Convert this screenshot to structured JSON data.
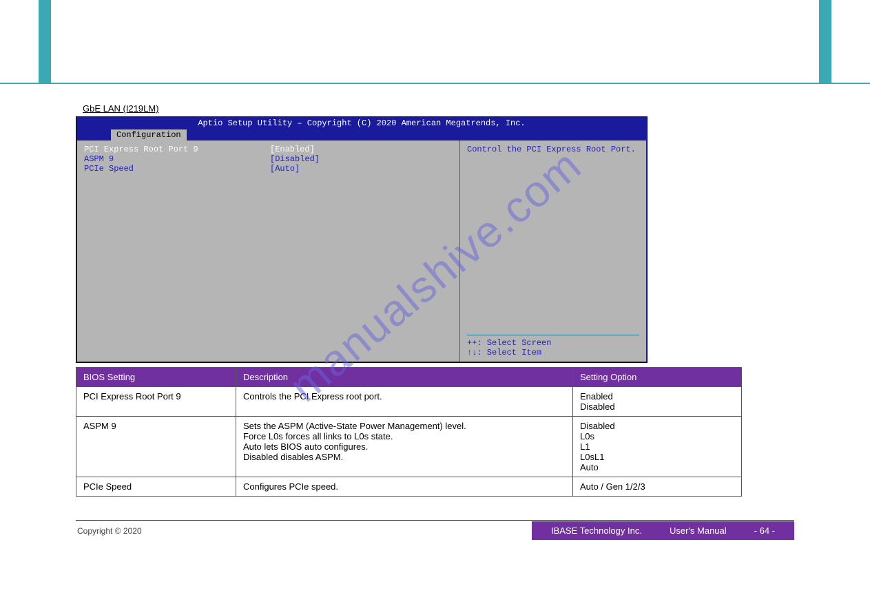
{
  "section_title": "GbE LAN (I219LM)",
  "watermark_text": "manualshive.com",
  "bios": {
    "title": "Aptio Setup Utility – Copyright (C) 2020 American Megatrends, Inc.",
    "tab": "Configuration",
    "rows": [
      {
        "label": "PCI Express Root Port 9",
        "value": "[Enabled]",
        "label_color": "#ffffff",
        "value_color": "#ffffff"
      },
      {
        "label": "ASPM 9",
        "value": "[Disabled]",
        "label_color": "#2020c4",
        "value_color": "#2020c4"
      },
      {
        "label": "PCIe Speed",
        "value": "[Auto]",
        "label_color": "#2020c4",
        "value_color": "#2020c4"
      }
    ],
    "help": "Control the PCI Express Root Port.",
    "hints": [
      "++: Select Screen",
      "↑↓: Select Item"
    ],
    "colors": {
      "header_bg": "#1a1a9c",
      "body_bg": "#b5b5b5",
      "tab_bg": "#b5b5b5",
      "text_blue": "#2020c4",
      "text_white": "#ffffff",
      "divider": "#18708a"
    }
  },
  "table": {
    "headers": [
      "BIOS Setting",
      "Description",
      "Setting Option"
    ],
    "rows": [
      [
        "PCI Express Root Port 9",
        "Controls the PCI Express root port.",
        "Enabled\nDisabled"
      ],
      [
        "ASPM 9",
        "Sets the ASPM (Active-State Power Management) level.\nForce L0s forces all links to L0s state.\nAuto lets BIOS auto configures.\nDisabled disables ASPM.",
        "Disabled\nL0s\nL1\nL0sL1\nAuto"
      ],
      [
        "PCIe Speed",
        "Configures PCIe speed.",
        "Auto / Gen 1/2/3"
      ]
    ],
    "header_bg": "#7030a0",
    "header_color": "#ffffff"
  },
  "footer": {
    "line1": "IBASE Technology Inc.",
    "line2": "User's Manual",
    "copyright": "Copyright © 2020",
    "page": "- 64 -"
  }
}
